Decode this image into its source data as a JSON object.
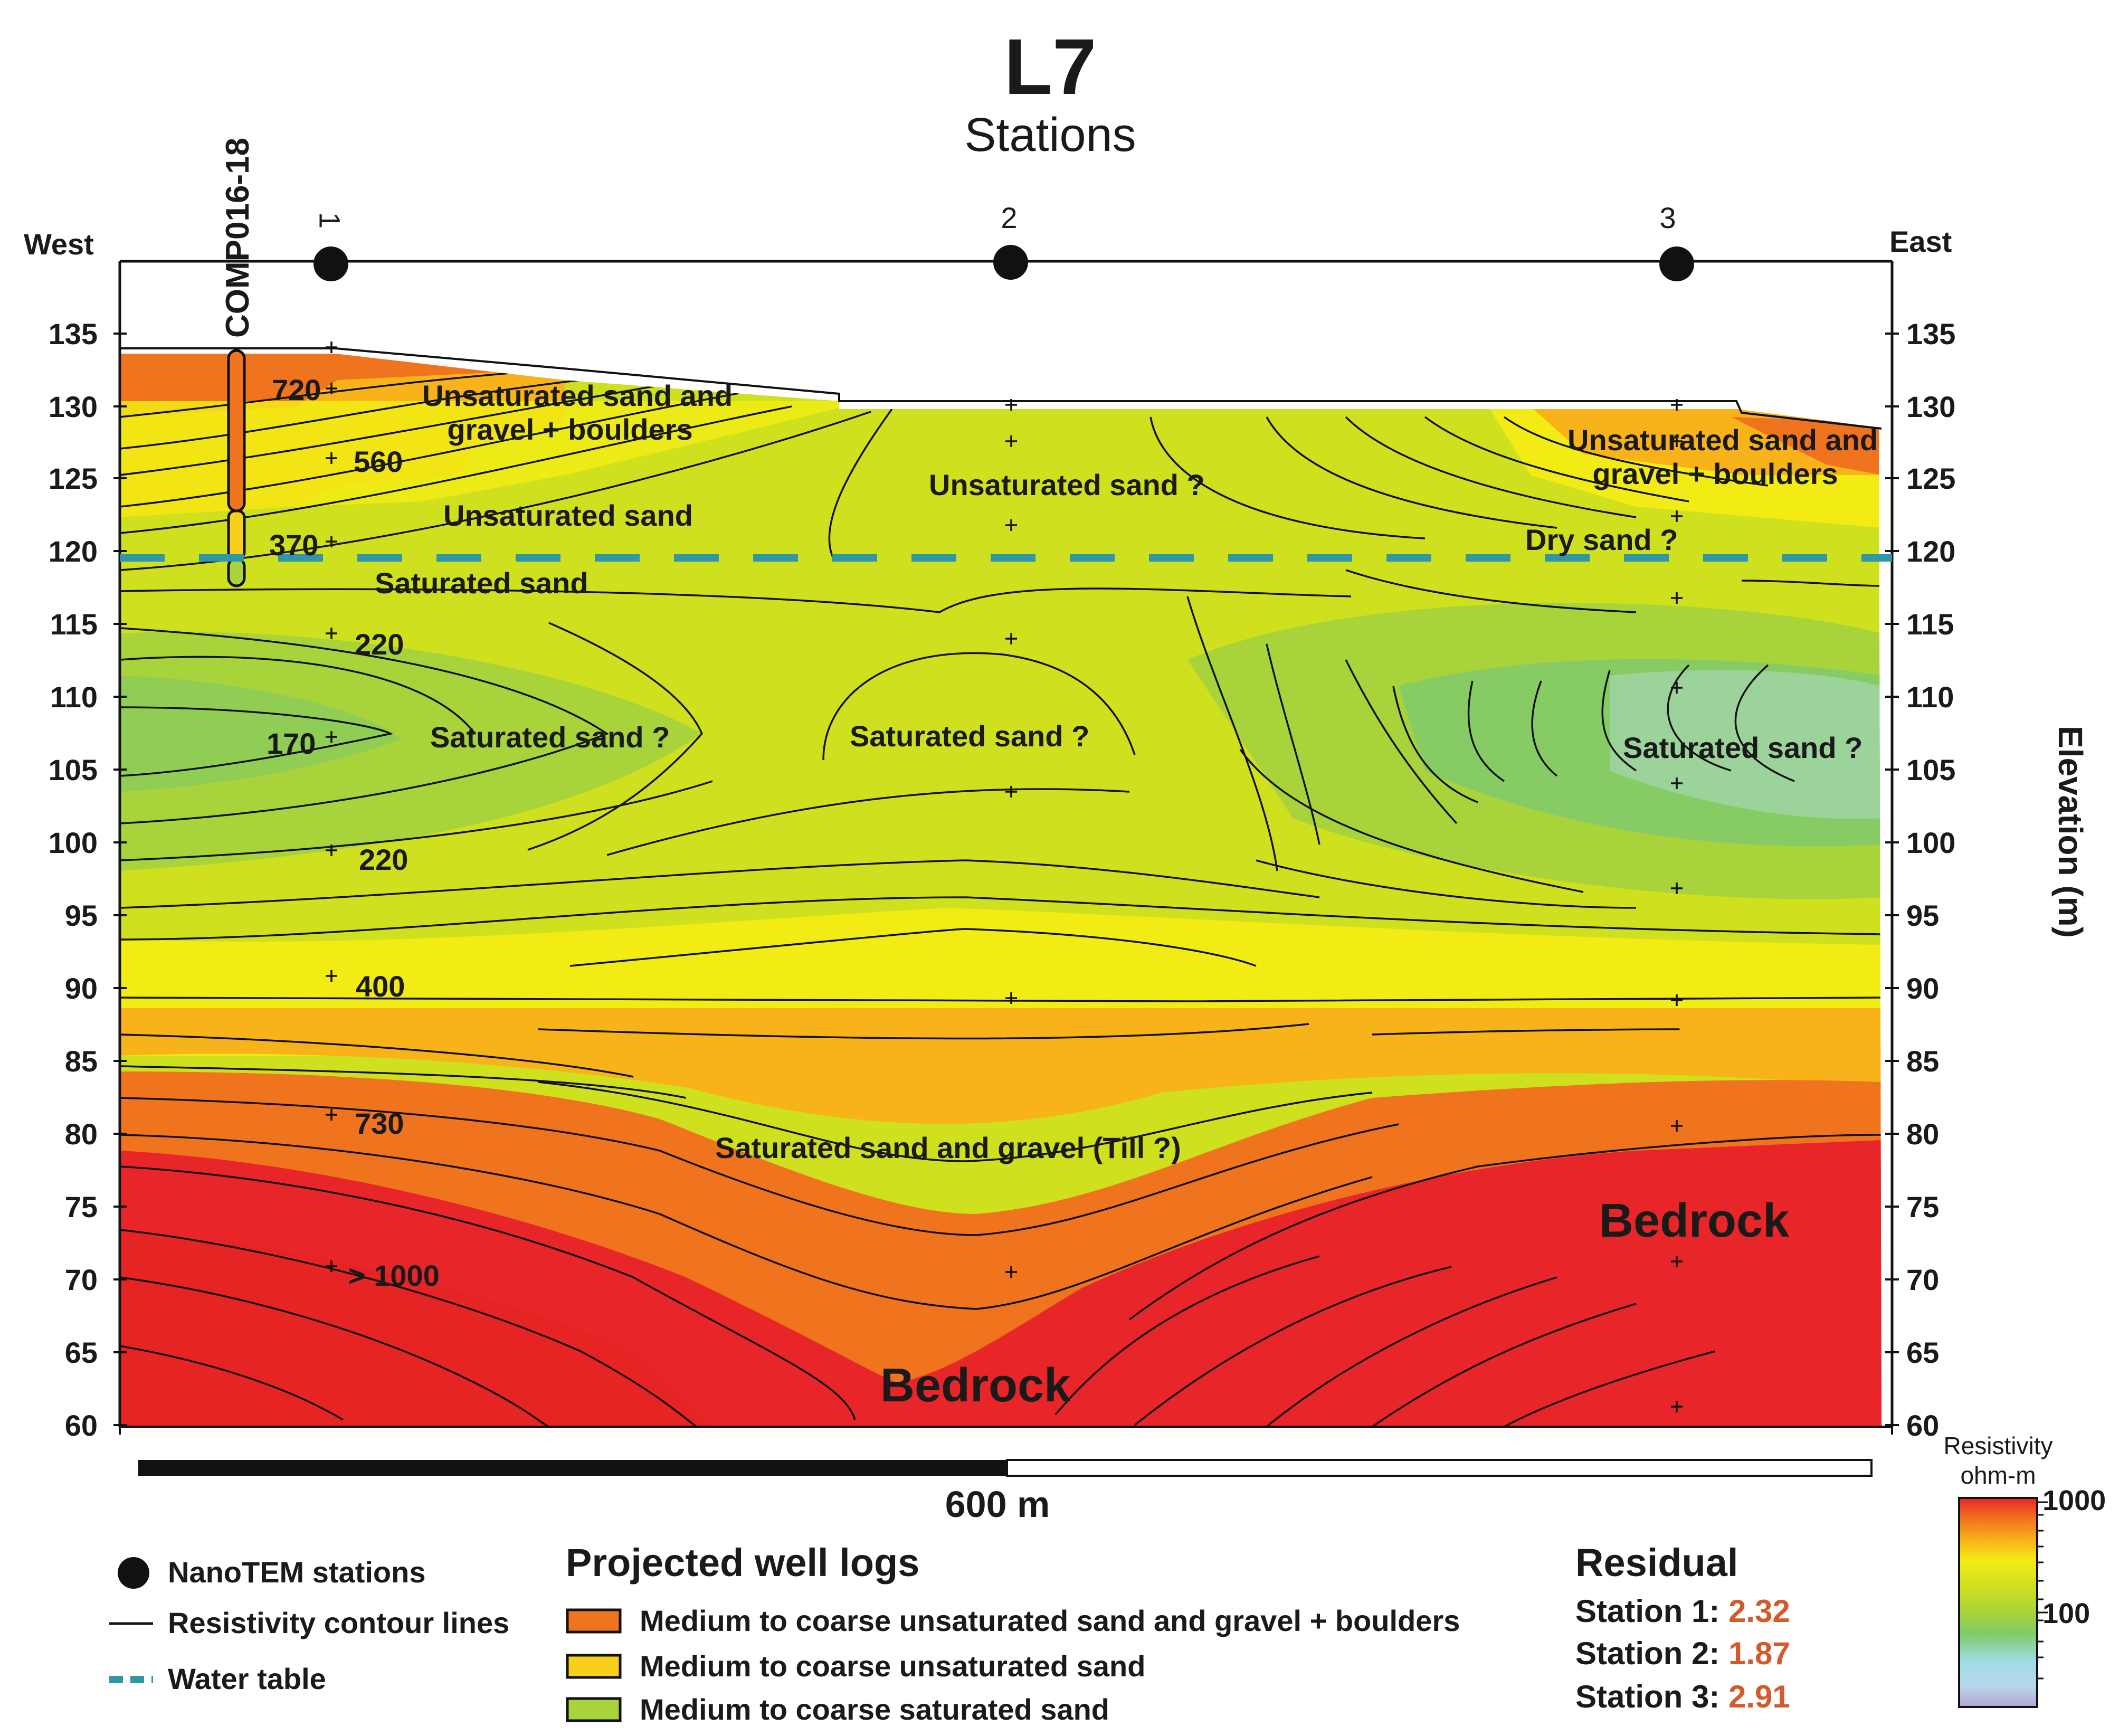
{
  "header": {
    "title": "L7",
    "subtitle": "Stations"
  },
  "directions": {
    "west": "West",
    "east": "East"
  },
  "well": {
    "name": "COMP016-18"
  },
  "stations": [
    "1",
    "2",
    "3"
  ],
  "elevation_axis": {
    "title": "Elevation (m)",
    "ticks": [
      "135",
      "130",
      "125",
      "120",
      "115",
      "110",
      "105",
      "100",
      "95",
      "90",
      "85",
      "80",
      "75",
      "70",
      "65",
      "60"
    ]
  },
  "contour_labels": [
    "720",
    "560",
    "370",
    "220",
    "170",
    "220",
    "400",
    "730",
    "> 1000"
  ],
  "annotations": {
    "unsat_sand_gravel_west": [
      "Unsaturated sand and",
      "gravel + boulders"
    ],
    "unsat_sand_gravel_east": [
      "Unsaturated sand and",
      "gravel + boulders"
    ],
    "unsat_sand_center": "Unsaturated sand ?",
    "unsat_sand_west": "Unsaturated sand",
    "dry_sand": "Dry sand ?",
    "saturated_sand": "Saturated sand",
    "sat_sand_q_west": "Saturated sand ?",
    "sat_sand_q_center": "Saturated sand ?",
    "sat_sand_q_east": "Saturated sand ?",
    "till": "Saturated sand and gravel (Till ?)",
    "bedrock_east": "Bedrock",
    "bedrock_center": "Bedrock"
  },
  "scale_bar": {
    "label": "600 m"
  },
  "legend": {
    "stations": "NanoTEM stations",
    "contours": "Resistivity contour lines",
    "water_table": "Water table"
  },
  "well_logs": {
    "title": "Projected well logs",
    "items": [
      "Medium to coarse unsaturated sand and gravel + boulders",
      "Medium to coarse unsaturated sand",
      "Medium to coarse saturated sand"
    ]
  },
  "residual": {
    "title": "Residual",
    "rows": [
      {
        "label": "Station 1:",
        "value": "2.32"
      },
      {
        "label": "Station 2:",
        "value": "1.87"
      },
      {
        "label": "Station 3:",
        "value": "2.91"
      }
    ]
  },
  "colorbar": {
    "title_line1": "Resistivity",
    "title_line2": "ohm-m",
    "tick_high": "1000",
    "tick_low": "100"
  },
  "colors": {
    "red": "#e8262a",
    "orange": "#f0731e",
    "amber": "#f8b21a",
    "yellow": "#f2ec14",
    "yellowgreen": "#cfe01e",
    "green": "#a8d33a",
    "lightgreen": "#7fca6a",
    "water": "#2f97a8",
    "residual": "#d35a2a"
  }
}
